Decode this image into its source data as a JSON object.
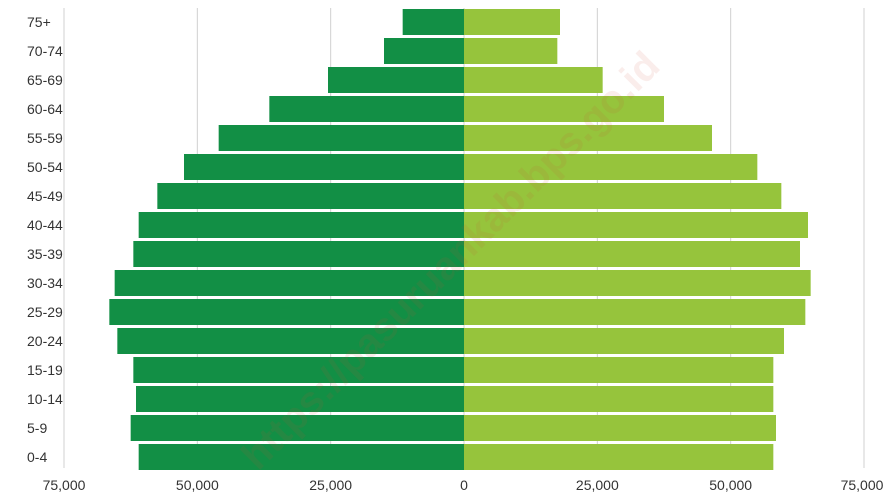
{
  "watermark": "https://pasuruankab.bps.go.id",
  "colors": {
    "left": "#128f45",
    "right": "#96c43c",
    "grid": "#d0d0d0",
    "text": "#333333"
  },
  "chart_data": {
    "type": "bar",
    "orientation": "horizontal",
    "title": "",
    "xlabel": "",
    "ylabel": "",
    "grid": true,
    "xlim": [
      -75000,
      75000
    ],
    "x_ticks": [
      -75000,
      -50000,
      -25000,
      0,
      25000,
      50000,
      75000
    ],
    "x_tick_labels": [
      "75,000",
      "50,000",
      "25,000",
      "0",
      "25,000",
      "50,000",
      "75,000"
    ],
    "categories": [
      "75+",
      "70-74",
      "65-69",
      "60-64",
      "55-59",
      "50-54",
      "45-49",
      "40-44",
      "35-39",
      "30-34",
      "25-29",
      "20-24",
      "15-19",
      "10-14",
      "5-9",
      "0-4"
    ],
    "series": [
      {
        "side": "left",
        "values": [
          11500,
          15000,
          25500,
          36500,
          46000,
          52500,
          57500,
          61000,
          62000,
          65500,
          66500,
          65000,
          62000,
          61500,
          62500,
          61000
        ]
      },
      {
        "side": "right",
        "values": [
          18000,
          17500,
          26000,
          37500,
          46500,
          55000,
          59500,
          64500,
          63000,
          65000,
          64000,
          60000,
          58000,
          58000,
          58500,
          58000
        ]
      }
    ]
  }
}
